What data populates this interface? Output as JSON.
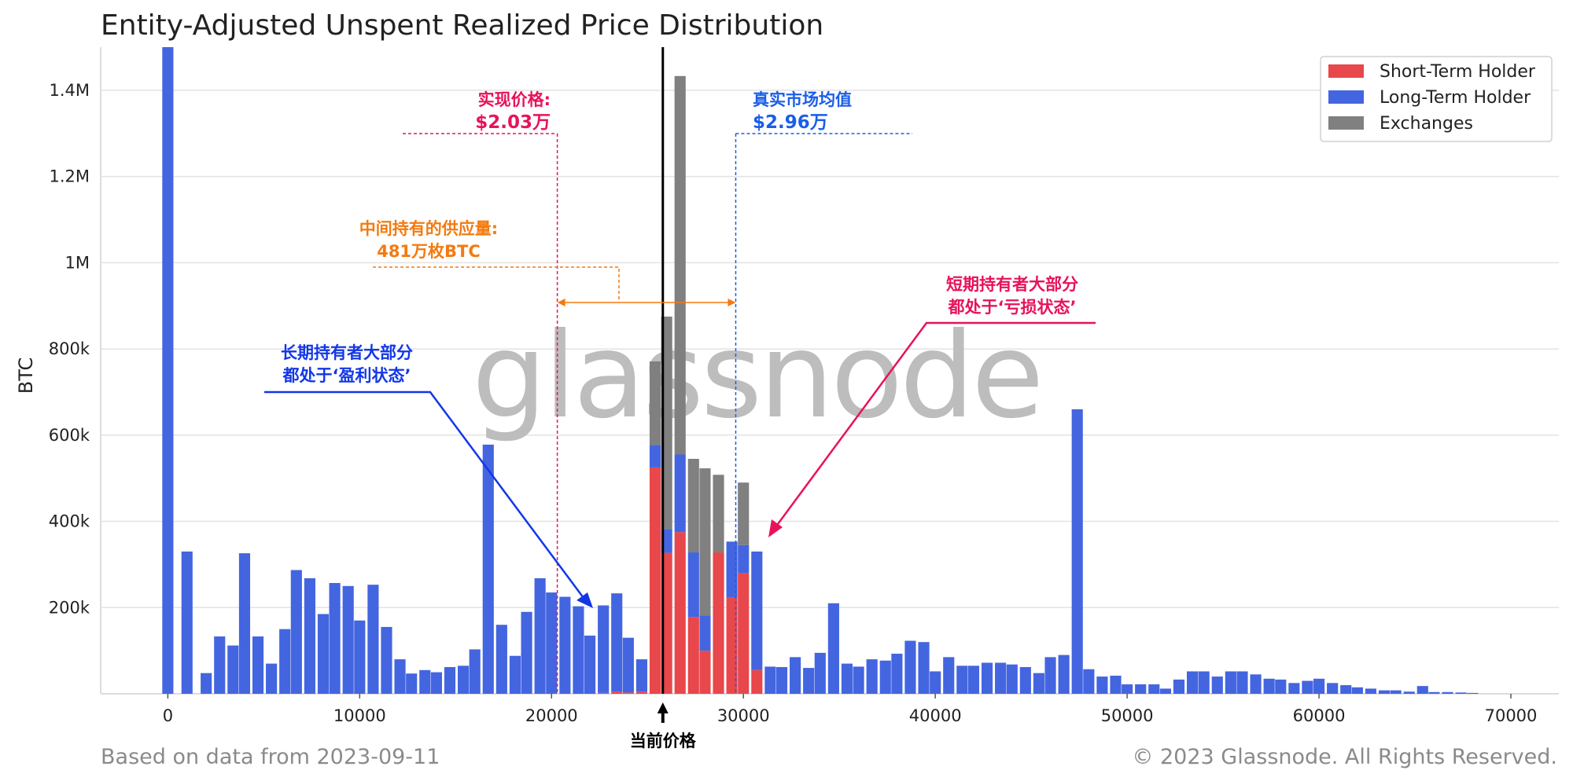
{
  "chart_data": {
    "type": "bar",
    "stacked": true,
    "title": "Entity-Adjusted Unspent Realized Price Distribution",
    "xlabel": "",
    "ylabel": "BTC",
    "xlim": [
      -3500,
      72500
    ],
    "ylim": [
      0,
      1500000
    ],
    "bin_width": 1000,
    "x_ticks": [
      0,
      10000,
      20000,
      30000,
      40000,
      50000,
      60000,
      70000
    ],
    "x_tick_labels": [
      "0",
      "10000",
      "20000",
      "30000",
      "40000",
      "50000",
      "60000",
      "70000"
    ],
    "y_ticks": [
      200000,
      400000,
      600000,
      800000,
      1000000,
      1200000,
      1400000
    ],
    "y_tick_labels": [
      "200k",
      "400k",
      "600k",
      "800k",
      "1M",
      "1.2M",
      "1.4M"
    ],
    "grid": true,
    "legend_position": "top-right",
    "x": [
      500,
      1500,
      2500,
      3500,
      4500,
      5500,
      6500,
      7500,
      8500,
      9500,
      10500,
      11500,
      12500,
      13500,
      14500,
      15500,
      16500,
      17500,
      18500,
      19500,
      20500,
      21500,
      22500,
      23500,
      24500,
      25500,
      26500,
      27500,
      28500,
      29500,
      30500,
      31500,
      32500,
      33500,
      34500,
      35500,
      36500,
      37500,
      38500,
      39500,
      40500,
      41500,
      42500,
      43500,
      44500,
      45500,
      46500,
      47500,
      48500,
      49500,
      50500,
      51500,
      52500,
      53500,
      54500,
      55500,
      56500,
      57500,
      58500,
      59500,
      60500,
      61500,
      62500,
      63500,
      64500,
      65500,
      66500,
      67500,
      68500,
      69500,
      70500,
      71500,
      72500
    ],
    "series": [
      {
        "name": "Short-Term Holder",
        "color": "#e8474b",
        "values": [
          0,
          0,
          0,
          0,
          0,
          0,
          0,
          0,
          0,
          0,
          0,
          0,
          0,
          0,
          0,
          0,
          0,
          0,
          0,
          0,
          0,
          0,
          0,
          0,
          0,
          0,
          0,
          0,
          0,
          0,
          0,
          0,
          0,
          0,
          0,
          0,
          0,
          0,
          0,
          0,
          0,
          0,
          0,
          0,
          0,
          0,
          0,
          0,
          0,
          0,
          0,
          0,
          0,
          0,
          0,
          0,
          0,
          0,
          0,
          0,
          0,
          0,
          0,
          0,
          0,
          0,
          0,
          0,
          0,
          0,
          0,
          0,
          0
        ]
      },
      {
        "name": "Long-Term Holder",
        "color": "#4465e0",
        "values": [
          0,
          0,
          0,
          0,
          0,
          0,
          0,
          0,
          0,
          0,
          0,
          0,
          0,
          0,
          0,
          0,
          0,
          0,
          0,
          0,
          0,
          0,
          0,
          0,
          0,
          0,
          0,
          0,
          0,
          0,
          0,
          0,
          0,
          0,
          0,
          0,
          0,
          0,
          0,
          0,
          0,
          0,
          0,
          0,
          0,
          0,
          0,
          0,
          0,
          0,
          0,
          0,
          0,
          0,
          0,
          0,
          0,
          0,
          0,
          0,
          0,
          0,
          0,
          0,
          0,
          0,
          0,
          0,
          0,
          0,
          0,
          0,
          0
        ]
      },
      {
        "name": "Exchanges",
        "color": "#808080",
        "values": [
          0,
          0,
          0,
          0,
          0,
          0,
          0,
          0,
          0,
          0,
          0,
          0,
          0,
          0,
          0,
          0,
          0,
          0,
          0,
          0,
          0,
          0,
          0,
          0,
          0,
          0,
          0,
          0,
          0,
          0,
          0,
          0,
          0,
          0,
          0,
          0,
          0,
          0,
          0,
          0,
          0,
          0,
          0,
          0,
          0,
          0,
          0,
          0,
          0,
          0,
          0,
          0,
          0,
          0,
          0,
          0,
          0,
          0,
          0,
          0,
          0,
          0,
          0,
          0,
          0,
          0,
          0,
          0,
          0,
          0,
          0,
          0,
          0
        ]
      }
    ],
    "bars": [
      {
        "x": 0,
        "sth": 0,
        "lth": 1500000,
        "ex": 0
      },
      {
        "x": 1000,
        "sth": 0,
        "lth": 330000,
        "ex": 0
      },
      {
        "x": 2000,
        "sth": 0,
        "lth": 48000,
        "ex": 0
      },
      {
        "x": 2700,
        "sth": 0,
        "lth": 133000,
        "ex": 0
      },
      {
        "x": 3400,
        "sth": 0,
        "lth": 112000,
        "ex": 0
      },
      {
        "x": 4000,
        "sth": 0,
        "lth": 326000,
        "ex": 0
      },
      {
        "x": 4700,
        "sth": 0,
        "lth": 133000,
        "ex": 0
      },
      {
        "x": 5400,
        "sth": 0,
        "lth": 70000,
        "ex": 0
      },
      {
        "x": 6100,
        "sth": 0,
        "lth": 150000,
        "ex": 0
      },
      {
        "x": 6700,
        "sth": 0,
        "lth": 287000,
        "ex": 0
      },
      {
        "x": 7400,
        "sth": 0,
        "lth": 268000,
        "ex": 0
      },
      {
        "x": 8100,
        "sth": 0,
        "lth": 185000,
        "ex": 0
      },
      {
        "x": 8700,
        "sth": 0,
        "lth": 257000,
        "ex": 0
      },
      {
        "x": 9400,
        "sth": 0,
        "lth": 250000,
        "ex": 0
      },
      {
        "x": 10000,
        "sth": 0,
        "lth": 170000,
        "ex": 0
      },
      {
        "x": 10700,
        "sth": 0,
        "lth": 253000,
        "ex": 0
      },
      {
        "x": 11400,
        "sth": 0,
        "lth": 155000,
        "ex": 0
      },
      {
        "x": 12100,
        "sth": 0,
        "lth": 80000,
        "ex": 0
      },
      {
        "x": 12700,
        "sth": 0,
        "lth": 47000,
        "ex": 0
      },
      {
        "x": 13400,
        "sth": 0,
        "lth": 55000,
        "ex": 0
      },
      {
        "x": 14000,
        "sth": 0,
        "lth": 50000,
        "ex": 0
      },
      {
        "x": 14700,
        "sth": 0,
        "lth": 62000,
        "ex": 0
      },
      {
        "x": 15400,
        "sth": 0,
        "lth": 65000,
        "ex": 0
      },
      {
        "x": 16000,
        "sth": 0,
        "lth": 103000,
        "ex": 0
      },
      {
        "x": 16700,
        "sth": 0,
        "lth": 578000,
        "ex": 0
      },
      {
        "x": 17400,
        "sth": 0,
        "lth": 160000,
        "ex": 0
      },
      {
        "x": 18100,
        "sth": 0,
        "lth": 88000,
        "ex": 0
      },
      {
        "x": 18700,
        "sth": 0,
        "lth": 190000,
        "ex": 0
      },
      {
        "x": 19400,
        "sth": 0,
        "lth": 268000,
        "ex": 0
      },
      {
        "x": 20000,
        "sth": 0,
        "lth": 235000,
        "ex": 0
      },
      {
        "x": 20700,
        "sth": 0,
        "lth": 225000,
        "ex": 0
      },
      {
        "x": 21400,
        "sth": 0,
        "lth": 203000,
        "ex": 0
      },
      {
        "x": 22000,
        "sth": 0,
        "lth": 135000,
        "ex": 0
      },
      {
        "x": 22700,
        "sth": 2000,
        "lth": 203000,
        "ex": 0
      },
      {
        "x": 23400,
        "sth": 5000,
        "lth": 228000,
        "ex": 0
      },
      {
        "x": 24000,
        "sth": 3000,
        "lth": 127000,
        "ex": 0
      },
      {
        "x": 24700,
        "sth": 5000,
        "lth": 75000,
        "ex": 0
      },
      {
        "x": 25400,
        "sth": 525000,
        "lth": 52000,
        "ex": 194000
      },
      {
        "x": 26000,
        "sth": 327000,
        "lth": 55000,
        "ex": 493000
      },
      {
        "x": 26700,
        "sth": 375000,
        "lth": 180000,
        "ex": 878000
      },
      {
        "x": 27400,
        "sth": 178000,
        "lth": 150000,
        "ex": 217000
      },
      {
        "x": 28000,
        "sth": 100000,
        "lth": 82000,
        "ex": 341000
      },
      {
        "x": 28700,
        "sth": 328000,
        "lth": 0,
        "ex": 180000
      },
      {
        "x": 29400,
        "sth": 223000,
        "lth": 130000,
        "ex": 0
      },
      {
        "x": 30000,
        "sth": 280000,
        "lth": 65000,
        "ex": 145000
      },
      {
        "x": 30700,
        "sth": 55000,
        "lth": 275000,
        "ex": 0
      },
      {
        "x": 31400,
        "sth": 0,
        "lth": 63000,
        "ex": 0
      },
      {
        "x": 32000,
        "sth": 0,
        "lth": 62000,
        "ex": 0
      },
      {
        "x": 32700,
        "sth": 0,
        "lth": 85000,
        "ex": 0
      },
      {
        "x": 33400,
        "sth": 0,
        "lth": 60000,
        "ex": 0
      },
      {
        "x": 34000,
        "sth": 0,
        "lth": 95000,
        "ex": 0
      },
      {
        "x": 34700,
        "sth": 0,
        "lth": 210000,
        "ex": 0
      },
      {
        "x": 35400,
        "sth": 0,
        "lth": 70000,
        "ex": 0
      },
      {
        "x": 36000,
        "sth": 0,
        "lth": 63000,
        "ex": 0
      },
      {
        "x": 36700,
        "sth": 0,
        "lth": 80000,
        "ex": 0
      },
      {
        "x": 37400,
        "sth": 0,
        "lth": 77000,
        "ex": 0
      },
      {
        "x": 38000,
        "sth": 0,
        "lth": 93000,
        "ex": 0
      },
      {
        "x": 38700,
        "sth": 0,
        "lth": 123000,
        "ex": 0
      },
      {
        "x": 39400,
        "sth": 0,
        "lth": 120000,
        "ex": 0
      },
      {
        "x": 40000,
        "sth": 0,
        "lth": 52000,
        "ex": 0
      },
      {
        "x": 40700,
        "sth": 0,
        "lth": 85000,
        "ex": 0
      },
      {
        "x": 41400,
        "sth": 0,
        "lth": 65000,
        "ex": 0
      },
      {
        "x": 42000,
        "sth": 0,
        "lth": 65000,
        "ex": 0
      },
      {
        "x": 42700,
        "sth": 0,
        "lth": 72000,
        "ex": 0
      },
      {
        "x": 43400,
        "sth": 0,
        "lth": 72000,
        "ex": 0
      },
      {
        "x": 44000,
        "sth": 0,
        "lth": 68000,
        "ex": 0
      },
      {
        "x": 44700,
        "sth": 0,
        "lth": 62000,
        "ex": 0
      },
      {
        "x": 45400,
        "sth": 0,
        "lth": 48000,
        "ex": 0
      },
      {
        "x": 46000,
        "sth": 0,
        "lth": 85000,
        "ex": 0
      },
      {
        "x": 46700,
        "sth": 0,
        "lth": 90000,
        "ex": 0
      },
      {
        "x": 47400,
        "sth": 0,
        "lth": 660000,
        "ex": 0
      },
      {
        "x": 48000,
        "sth": 0,
        "lth": 57000,
        "ex": 0
      },
      {
        "x": 48700,
        "sth": 0,
        "lth": 40000,
        "ex": 0
      },
      {
        "x": 49400,
        "sth": 0,
        "lth": 42000,
        "ex": 0
      },
      {
        "x": 50000,
        "sth": 0,
        "lth": 22000,
        "ex": 0
      },
      {
        "x": 50700,
        "sth": 0,
        "lth": 22000,
        "ex": 0
      },
      {
        "x": 51400,
        "sth": 0,
        "lth": 22000,
        "ex": 0
      },
      {
        "x": 52000,
        "sth": 0,
        "lth": 12000,
        "ex": 0
      },
      {
        "x": 52700,
        "sth": 0,
        "lth": 33000,
        "ex": 0
      },
      {
        "x": 53400,
        "sth": 0,
        "lth": 52000,
        "ex": 0
      },
      {
        "x": 54000,
        "sth": 0,
        "lth": 52000,
        "ex": 0
      },
      {
        "x": 54700,
        "sth": 0,
        "lth": 40000,
        "ex": 0
      },
      {
        "x": 55400,
        "sth": 0,
        "lth": 52000,
        "ex": 0
      },
      {
        "x": 56000,
        "sth": 0,
        "lth": 52000,
        "ex": 0
      },
      {
        "x": 56700,
        "sth": 0,
        "lth": 45000,
        "ex": 0
      },
      {
        "x": 57400,
        "sth": 0,
        "lth": 35000,
        "ex": 0
      },
      {
        "x": 58000,
        "sth": 0,
        "lth": 33000,
        "ex": 0
      },
      {
        "x": 58700,
        "sth": 0,
        "lth": 25000,
        "ex": 0
      },
      {
        "x": 59400,
        "sth": 0,
        "lth": 30000,
        "ex": 0
      },
      {
        "x": 60000,
        "sth": 0,
        "lth": 35000,
        "ex": 0
      },
      {
        "x": 60700,
        "sth": 0,
        "lth": 25000,
        "ex": 0
      },
      {
        "x": 61400,
        "sth": 0,
        "lth": 20000,
        "ex": 0
      },
      {
        "x": 62000,
        "sth": 0,
        "lth": 15000,
        "ex": 0
      },
      {
        "x": 62700,
        "sth": 0,
        "lth": 12000,
        "ex": 0
      },
      {
        "x": 63400,
        "sth": 0,
        "lth": 8000,
        "ex": 0
      },
      {
        "x": 64000,
        "sth": 0,
        "lth": 8000,
        "ex": 0
      },
      {
        "x": 64700,
        "sth": 0,
        "lth": 5000,
        "ex": 0
      },
      {
        "x": 65400,
        "sth": 0,
        "lth": 18000,
        "ex": 0
      },
      {
        "x": 66000,
        "sth": 0,
        "lth": 4000,
        "ex": 0
      },
      {
        "x": 66700,
        "sth": 0,
        "lth": 4000,
        "ex": 0
      },
      {
        "x": 67400,
        "sth": 0,
        "lth": 3000,
        "ex": 0
      },
      {
        "x": 68000,
        "sth": 0,
        "lth": 2000,
        "ex": 0
      }
    ],
    "current_price_x": 25800,
    "current_price_label": "当前价格",
    "annotations": {
      "realized_price": {
        "line1": "实现价格:",
        "line2": "$2.03万",
        "x": 20300,
        "color": "#e8125c"
      },
      "true_market_mean": {
        "line1": "真实市场均值",
        "line2": "$2.96万",
        "x": 29600,
        "color": "#1a5ee8"
      },
      "supply_between": {
        "line1": "中间持有的供应量:",
        "line2": "481万枚BTC",
        "color": "#f47a0f"
      },
      "lth_note": {
        "line1": "长期持有者大部分",
        "line2": "都处于‘盈利状态’",
        "color": "#1237e8"
      },
      "sth_note": {
        "line1": "短期持有者大部分",
        "line2": "都处于‘亏损状态’",
        "color": "#e8125c"
      }
    }
  },
  "watermark": "glassnode",
  "footer": {
    "left": "Based on data from 2023-09-11",
    "right": "© 2023 Glassnode. All Rights Reserved."
  }
}
